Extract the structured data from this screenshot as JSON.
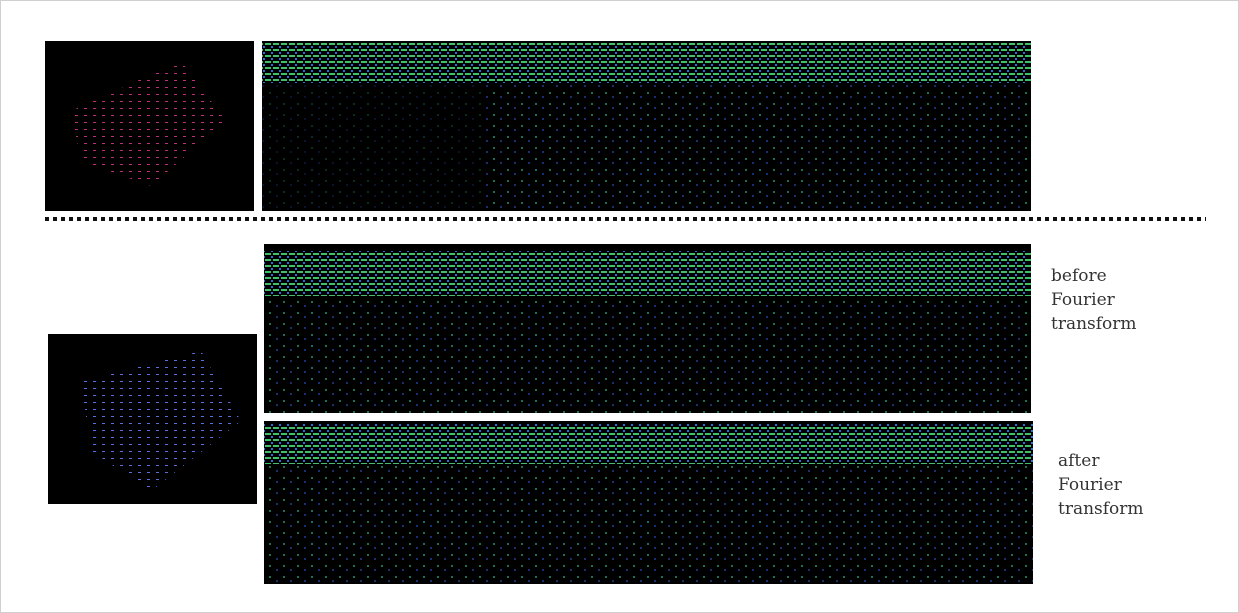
{
  "labels": {
    "before": "before Fourier transform",
    "after": "after Fourier transform"
  }
}
